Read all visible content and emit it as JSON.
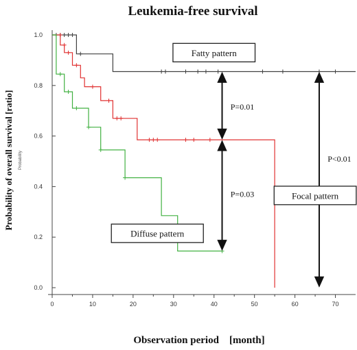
{
  "chart_data": {
    "type": "line",
    "subtype": "kaplan-meier step",
    "title": "Leukemia-free survival",
    "xlabel": "Observation period　[month]",
    "ylabel": "Probability of overall survival [ratio]",
    "ylabel_small": "Probability",
    "xlim": [
      0,
      75
    ],
    "ylim": [
      0,
      1.0
    ],
    "x_ticks": [
      0,
      10,
      20,
      30,
      40,
      50,
      60,
      70
    ],
    "x_tick_labels": [
      "0",
      "10",
      "20",
      "30",
      "40",
      "50",
      "60",
      "70"
    ],
    "y_ticks": [
      0.0,
      0.2,
      0.4,
      0.6,
      0.8,
      1.0
    ],
    "y_tick_labels": [
      "0.0",
      "0.2",
      "0.4",
      "0.6",
      "0.8",
      "1.0"
    ],
    "grid": false,
    "series": [
      {
        "name": "Fatty pattern",
        "color": "#404040",
        "steps": [
          [
            0,
            1.0
          ],
          [
            6,
            1.0
          ],
          [
            6,
            0.925
          ],
          [
            15,
            0.925
          ],
          [
            15,
            0.855
          ],
          [
            75,
            0.855
          ]
        ],
        "censored": [
          [
            1,
            1.0
          ],
          [
            2,
            1.0
          ],
          [
            3,
            1.0
          ],
          [
            4,
            1.0
          ],
          [
            5,
            1.0
          ],
          [
            7,
            0.925
          ],
          [
            27,
            0.855
          ],
          [
            28,
            0.855
          ],
          [
            33,
            0.855
          ],
          [
            36,
            0.855
          ],
          [
            38,
            0.855
          ],
          [
            41,
            0.855
          ],
          [
            52,
            0.855
          ],
          [
            57,
            0.855
          ],
          [
            66,
            0.855
          ],
          [
            70,
            0.855
          ]
        ]
      },
      {
        "name": "Focal pattern",
        "color": "#e03030",
        "steps": [
          [
            0,
            1.0
          ],
          [
            2,
            1.0
          ],
          [
            2,
            0.96
          ],
          [
            3,
            0.96
          ],
          [
            3,
            0.93
          ],
          [
            5,
            0.93
          ],
          [
            5,
            0.88
          ],
          [
            7,
            0.88
          ],
          [
            7,
            0.83
          ],
          [
            8,
            0.83
          ],
          [
            8,
            0.795
          ],
          [
            12,
            0.795
          ],
          [
            12,
            0.74
          ],
          [
            15,
            0.74
          ],
          [
            15,
            0.67
          ],
          [
            21,
            0.67
          ],
          [
            21,
            0.585
          ],
          [
            55,
            0.585
          ],
          [
            55,
            0.0
          ]
        ],
        "censored": [
          [
            2,
            1.0
          ],
          [
            3,
            0.96
          ],
          [
            4,
            0.93
          ],
          [
            6,
            0.88
          ],
          [
            10,
            0.795
          ],
          [
            14,
            0.74
          ],
          [
            16,
            0.67
          ],
          [
            17,
            0.67
          ],
          [
            24,
            0.585
          ],
          [
            25,
            0.585
          ],
          [
            26,
            0.585
          ],
          [
            33,
            0.585
          ],
          [
            35,
            0.585
          ],
          [
            39,
            0.585
          ]
        ]
      },
      {
        "name": "Diffuse pattern",
        "color": "#40b040",
        "steps": [
          [
            0,
            1.0
          ],
          [
            1,
            1.0
          ],
          [
            1,
            0.845
          ],
          [
            3,
            0.845
          ],
          [
            3,
            0.775
          ],
          [
            5,
            0.775
          ],
          [
            5,
            0.71
          ],
          [
            9,
            0.71
          ],
          [
            9,
            0.635
          ],
          [
            12,
            0.635
          ],
          [
            12,
            0.545
          ],
          [
            18,
            0.545
          ],
          [
            18,
            0.435
          ],
          [
            27,
            0.435
          ],
          [
            27,
            0.285
          ],
          [
            31,
            0.285
          ],
          [
            31,
            0.145
          ],
          [
            42,
            0.145
          ]
        ],
        "censored": [
          [
            2,
            0.845
          ],
          [
            4,
            0.775
          ],
          [
            6,
            0.71
          ],
          [
            9,
            0.635
          ],
          [
            12,
            0.545
          ],
          [
            18,
            0.435
          ],
          [
            42,
            0.145
          ]
        ]
      }
    ],
    "annotations": [
      {
        "label": "Fatty pattern",
        "kind": "box",
        "at": [
          40,
          0.93
        ]
      },
      {
        "label": "Focal pattern",
        "kind": "box",
        "at": [
          65,
          0.365
        ]
      },
      {
        "label": "Diffuse pattern",
        "kind": "box",
        "at": [
          26,
          0.215
        ]
      },
      {
        "label": "P=0.01",
        "kind": "text",
        "at": [
          47,
          0.715
        ]
      },
      {
        "label": "P=0.03",
        "kind": "text",
        "at": [
          47,
          0.37
        ]
      },
      {
        "label": "P<0.01",
        "kind": "text",
        "at": [
          71,
          0.51
        ]
      }
    ],
    "arrows": [
      {
        "x": 42,
        "y_from": 0.855,
        "y_to": 0.585
      },
      {
        "x": 42,
        "y_from": 0.585,
        "y_to": 0.145
      },
      {
        "x": 66,
        "y_from": 0.855,
        "y_to": 0.0
      }
    ]
  }
}
